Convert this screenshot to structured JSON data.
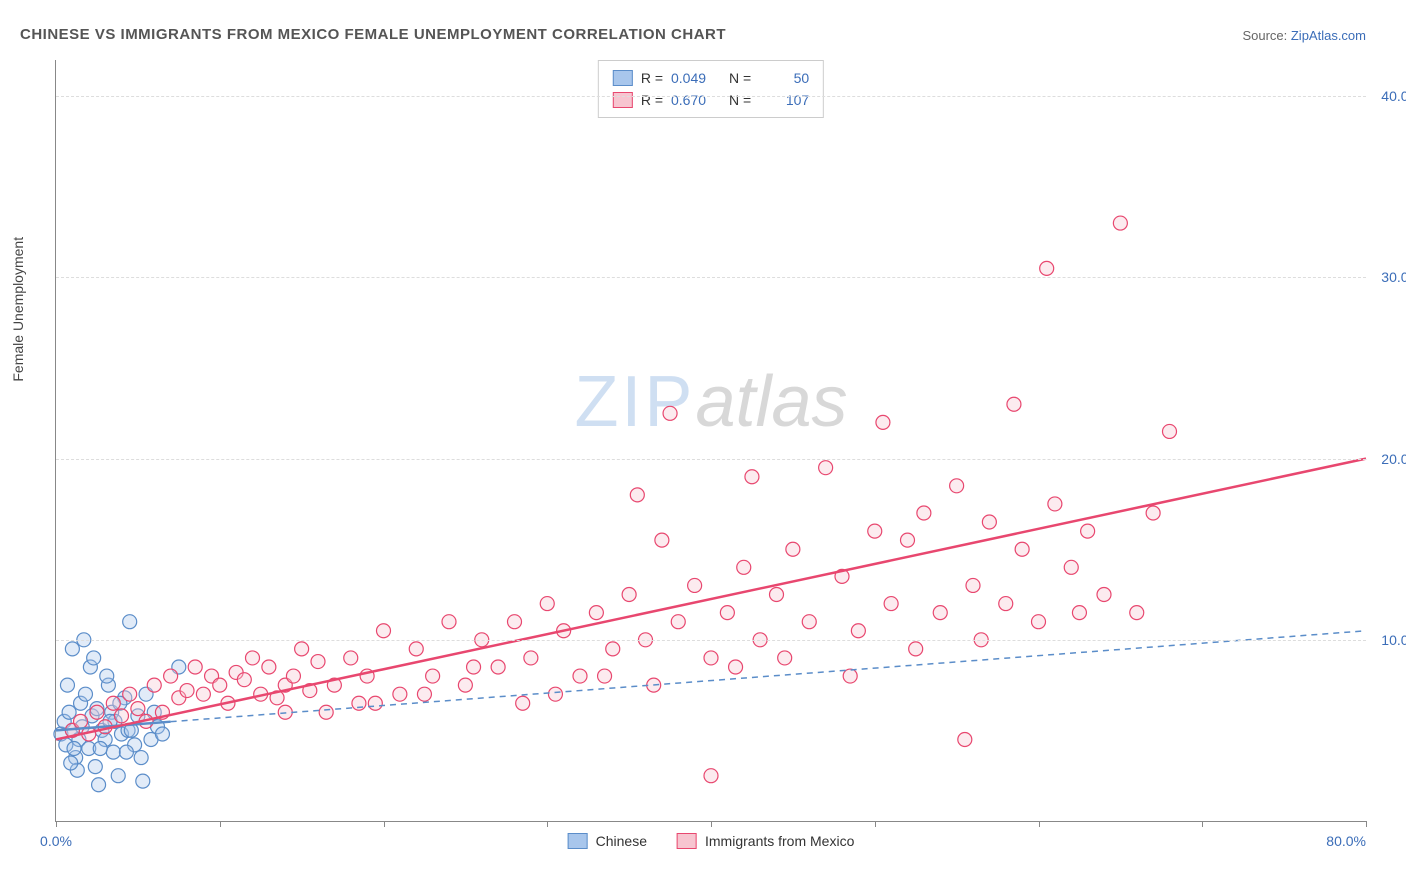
{
  "title": "CHINESE VS IMMIGRANTS FROM MEXICO FEMALE UNEMPLOYMENT CORRELATION CHART",
  "source_label": "Source: ",
  "source_name": "ZipAtlas.com",
  "ylabel": "Female Unemployment",
  "watermark_a": "ZIP",
  "watermark_b": "atlas",
  "chart": {
    "type": "scatter",
    "xlim": [
      0,
      80
    ],
    "ylim": [
      0,
      42
    ],
    "x_ticks": [
      0,
      10,
      20,
      30,
      40,
      50,
      60,
      70,
      80
    ],
    "x_tick_labels_shown": {
      "0": "0.0%",
      "80": "80.0%"
    },
    "y_ticks": [
      10,
      20,
      30,
      40
    ],
    "y_tick_labels": {
      "10": "10.0%",
      "20": "20.0%",
      "30": "30.0%",
      "40": "40.0%"
    },
    "grid_color": "#dddddd",
    "axis_color": "#888888",
    "background_color": "#ffffff",
    "marker_radius": 7,
    "series": [
      {
        "id": "chinese",
        "label": "Chinese",
        "color_fill": "#a8c6ec",
        "color_stroke": "#5b8dc9",
        "r_value": "0.049",
        "n_value": "50",
        "trend": {
          "x1": 0,
          "y1": 5.0,
          "x2": 80,
          "y2": 10.5,
          "solid_until_x": 7,
          "dashed": true,
          "color": "#5b8dc9"
        },
        "points": [
          [
            0.3,
            4.8
          ],
          [
            0.5,
            5.5
          ],
          [
            0.6,
            4.2
          ],
          [
            0.8,
            6.0
          ],
          [
            1.0,
            5.0
          ],
          [
            1.2,
            3.5
          ],
          [
            1.4,
            4.5
          ],
          [
            1.5,
            6.5
          ],
          [
            1.6,
            5.2
          ],
          [
            1.8,
            7.0
          ],
          [
            2.0,
            4.0
          ],
          [
            2.1,
            8.5
          ],
          [
            2.2,
            5.8
          ],
          [
            2.4,
            3.0
          ],
          [
            2.5,
            6.2
          ],
          [
            2.6,
            2.0
          ],
          [
            2.8,
            5.0
          ],
          [
            3.0,
            4.5
          ],
          [
            3.2,
            7.5
          ],
          [
            3.4,
            6.0
          ],
          [
            3.5,
            3.8
          ],
          [
            3.6,
            5.5
          ],
          [
            3.8,
            2.5
          ],
          [
            4.0,
            4.8
          ],
          [
            4.2,
            6.8
          ],
          [
            4.4,
            5.0
          ],
          [
            4.5,
            11.0
          ],
          [
            4.8,
            4.2
          ],
          [
            5.0,
            5.8
          ],
          [
            5.2,
            3.5
          ],
          [
            5.5,
            7.0
          ],
          [
            5.8,
            4.5
          ],
          [
            6.0,
            6.0
          ],
          [
            6.2,
            5.2
          ],
          [
            1.0,
            9.5
          ],
          [
            1.3,
            2.8
          ],
          [
            1.7,
            10.0
          ],
          [
            0.9,
            3.2
          ],
          [
            2.3,
            9.0
          ],
          [
            2.7,
            4.0
          ],
          [
            3.1,
            8.0
          ],
          [
            3.3,
            5.5
          ],
          [
            3.9,
            6.5
          ],
          [
            4.3,
            3.8
          ],
          [
            4.6,
            5.0
          ],
          [
            5.3,
            2.2
          ],
          [
            7.5,
            8.5
          ],
          [
            6.5,
            4.8
          ],
          [
            0.7,
            7.5
          ],
          [
            1.1,
            4.0
          ]
        ]
      },
      {
        "id": "mexico",
        "label": "Immigrants from Mexico",
        "color_fill": "#f7c5d0",
        "color_stroke": "#e8476f",
        "r_value": "0.670",
        "n_value": "107",
        "trend": {
          "x1": 0,
          "y1": 4.5,
          "x2": 80,
          "y2": 20.0,
          "dashed": false,
          "color": "#e8476f"
        },
        "points": [
          [
            1.0,
            5.0
          ],
          [
            1.5,
            5.5
          ],
          [
            2.0,
            4.8
          ],
          [
            2.5,
            6.0
          ],
          [
            3.0,
            5.2
          ],
          [
            3.5,
            6.5
          ],
          [
            4.0,
            5.8
          ],
          [
            4.5,
            7.0
          ],
          [
            5.0,
            6.2
          ],
          [
            5.5,
            5.5
          ],
          [
            6.0,
            7.5
          ],
          [
            6.5,
            6.0
          ],
          [
            7.0,
            8.0
          ],
          [
            7.5,
            6.8
          ],
          [
            8.0,
            7.2
          ],
          [
            8.5,
            8.5
          ],
          [
            9.0,
            7.0
          ],
          [
            9.5,
            8.0
          ],
          [
            10.0,
            7.5
          ],
          [
            10.5,
            6.5
          ],
          [
            11.0,
            8.2
          ],
          [
            11.5,
            7.8
          ],
          [
            12.0,
            9.0
          ],
          [
            12.5,
            7.0
          ],
          [
            13.0,
            8.5
          ],
          [
            13.5,
            6.8
          ],
          [
            14.0,
            7.5
          ],
          [
            14.5,
            8.0
          ],
          [
            15.0,
            9.5
          ],
          [
            15.5,
            7.2
          ],
          [
            16.0,
            8.8
          ],
          [
            17.0,
            7.5
          ],
          [
            18.0,
            9.0
          ],
          [
            18.5,
            6.5
          ],
          [
            19.0,
            8.0
          ],
          [
            20.0,
            10.5
          ],
          [
            21.0,
            7.0
          ],
          [
            22.0,
            9.5
          ],
          [
            23.0,
            8.0
          ],
          [
            24.0,
            11.0
          ],
          [
            25.0,
            7.5
          ],
          [
            26.0,
            10.0
          ],
          [
            27.0,
            8.5
          ],
          [
            28.0,
            11.0
          ],
          [
            28.5,
            6.5
          ],
          [
            29.0,
            9.0
          ],
          [
            30.0,
            12.0
          ],
          [
            31.0,
            10.5
          ],
          [
            32.0,
            8.0
          ],
          [
            33.0,
            11.5
          ],
          [
            34.0,
            9.5
          ],
          [
            35.0,
            12.5
          ],
          [
            35.5,
            18.0
          ],
          [
            36.0,
            10.0
          ],
          [
            37.0,
            15.5
          ],
          [
            37.5,
            22.5
          ],
          [
            38.0,
            11.0
          ],
          [
            39.0,
            13.0
          ],
          [
            40.0,
            2.5
          ],
          [
            40.0,
            9.0
          ],
          [
            41.0,
            11.5
          ],
          [
            42.0,
            14.0
          ],
          [
            42.5,
            19.0
          ],
          [
            43.0,
            10.0
          ],
          [
            44.0,
            12.5
          ],
          [
            45.0,
            15.0
          ],
          [
            46.0,
            11.0
          ],
          [
            47.0,
            19.5
          ],
          [
            48.0,
            13.5
          ],
          [
            49.0,
            10.5
          ],
          [
            50.0,
            16.0
          ],
          [
            50.5,
            22.0
          ],
          [
            51.0,
            12.0
          ],
          [
            52.0,
            15.5
          ],
          [
            53.0,
            17.0
          ],
          [
            54.0,
            11.5
          ],
          [
            55.0,
            18.5
          ],
          [
            55.5,
            4.5
          ],
          [
            56.0,
            13.0
          ],
          [
            57.0,
            16.5
          ],
          [
            58.0,
            12.0
          ],
          [
            58.5,
            23.0
          ],
          [
            59.0,
            15.0
          ],
          [
            60.0,
            11.0
          ],
          [
            60.5,
            30.5
          ],
          [
            61.0,
            17.5
          ],
          [
            62.0,
            14.0
          ],
          [
            63.0,
            16.0
          ],
          [
            64.0,
            12.5
          ],
          [
            65.0,
            33.0
          ],
          [
            66.0,
            11.5
          ],
          [
            67.0,
            17.0
          ],
          [
            68.0,
            21.5
          ],
          [
            14.0,
            6.0
          ],
          [
            16.5,
            6.0
          ],
          [
            19.5,
            6.5
          ],
          [
            22.5,
            7.0
          ],
          [
            25.5,
            8.5
          ],
          [
            30.5,
            7.0
          ],
          [
            33.5,
            8.0
          ],
          [
            36.5,
            7.5
          ],
          [
            41.5,
            8.5
          ],
          [
            44.5,
            9.0
          ],
          [
            48.5,
            8.0
          ],
          [
            52.5,
            9.5
          ],
          [
            56.5,
            10.0
          ],
          [
            62.5,
            11.5
          ]
        ]
      }
    ]
  },
  "legend_stats": {
    "r_label": "R =",
    "n_label": "N ="
  },
  "colors": {
    "text_title": "#555555",
    "text_axis": "#444444",
    "text_value": "#3b6db8",
    "link": "#3b6db8"
  }
}
